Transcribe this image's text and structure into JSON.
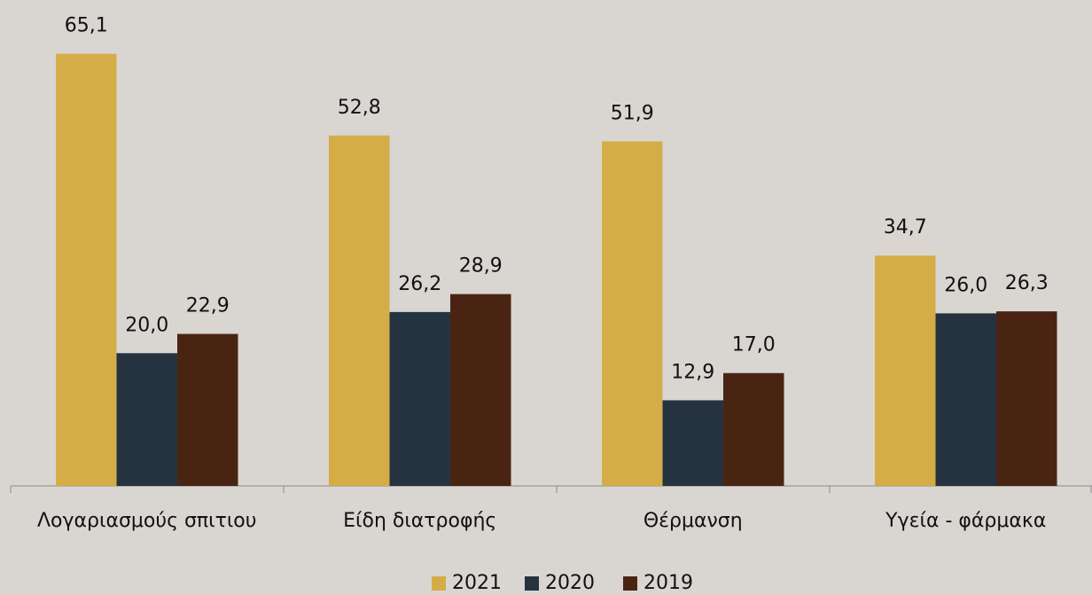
{
  "chart_data": {
    "type": "bar",
    "categories": [
      "Λογαριασμούς σπιτιου",
      "Είδη διατροφής",
      "Θέρμανση",
      "Υγεία - φάρμακα"
    ],
    "series": [
      {
        "name": "2021",
        "color": "#d4ad48",
        "values": [
          65.1,
          52.8,
          51.9,
          34.7
        ],
        "value_labels": [
          "65,1",
          "52,8",
          "51,9",
          "34,7"
        ]
      },
      {
        "name": "2020",
        "color": "#253340",
        "values": [
          20.0,
          26.2,
          12.9,
          26.0
        ],
        "value_labels": [
          "20,0",
          "26,2",
          "12,9",
          "26,0"
        ]
      },
      {
        "name": "2019",
        "color": "#4a2413",
        "values": [
          22.9,
          28.9,
          17.0,
          26.3
        ],
        "value_labels": [
          "22,9",
          "28,9",
          "17,0",
          "26,3"
        ]
      }
    ],
    "ylim": [
      0,
      70
    ],
    "legend": "bottom"
  }
}
